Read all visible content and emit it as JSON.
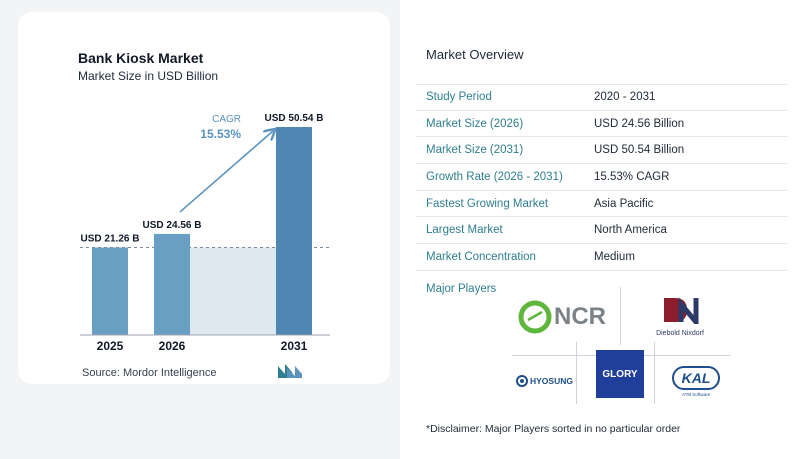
{
  "chart_data": {
    "type": "bar",
    "title": "Bank Kiosk Market",
    "subtitle": "Market Size in USD Billion",
    "categories": [
      "2025",
      "2026",
      "2031"
    ],
    "values": [
      21.26,
      24.56,
      50.54
    ],
    "value_labels": [
      "USD 21.26 B",
      "USD 24.56 B",
      "USD 50.54 B"
    ],
    "cagr_label": "CAGR",
    "cagr_value": "15.53%",
    "ylim": [
      0,
      52
    ],
    "grid": false,
    "colors": {
      "bar": "#6a9fc4",
      "bar_dark": "#4e87b3",
      "fill": "#dde8f1",
      "arrow": "#5b93bf",
      "cagr": "#5b93bf"
    }
  },
  "source": "Source:  Mordor Intelligence",
  "overview": {
    "title": "Market Overview",
    "rows": [
      {
        "label": "Study Period",
        "value": "2020 - 2031"
      },
      {
        "label": "Market Size (2026)",
        "value": "USD 24.56 Billion"
      },
      {
        "label": "Market Size (2031)",
        "value": "USD 50.54 Billion"
      },
      {
        "label": "Growth Rate (2026 - 2031)",
        "value": "15.53% CAGR"
      },
      {
        "label": "Fastest Growing Market",
        "value": "Asia Pacific"
      },
      {
        "label": "Largest Market",
        "value": "North America"
      },
      {
        "label": "Market Concentration",
        "value": "Medium"
      }
    ]
  },
  "players": {
    "label": "Major Players",
    "ncr": "NCR",
    "diebold": "Diebold Nixdorf",
    "hyosung": "HYOSUNG",
    "glory": "GLORY",
    "kal": "KAL",
    "kal_sub": "ATM Software"
  },
  "disclaimer": "*Disclaimer: Major Players sorted in no particular order"
}
